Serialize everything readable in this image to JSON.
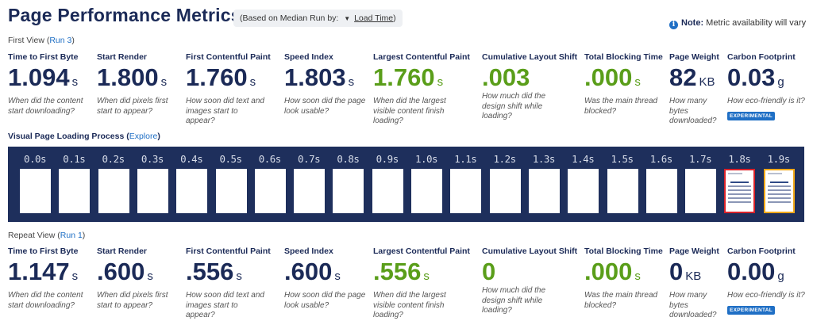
{
  "page": {
    "title": "Page Performance Metrics",
    "median_prefix": "(Based on Median Run by:",
    "median_value": "Load Time",
    "median_suffix": ")",
    "note_label": "Note:",
    "note_text": "Metric availability will vary"
  },
  "first_view": {
    "label": "First View (",
    "run": "Run 3",
    "close": ")",
    "metrics": [
      {
        "label": "Time to First Byte",
        "value": "1.094",
        "unit": "s",
        "desc": "When did the content start downloading?",
        "color": "#1b2a57"
      },
      {
        "label": "Start Render",
        "value": "1.800",
        "unit": "s",
        "desc": "When did pixels first start to appear?",
        "color": "#1b2a57"
      },
      {
        "label": "First Contentful Paint",
        "value": "1.760",
        "unit": "s",
        "desc": "How soon did text and images start to appear?",
        "color": "#1b2a57"
      },
      {
        "label": "Speed Index",
        "value": "1.803",
        "unit": "s",
        "desc": "How soon did the page look usable?",
        "color": "#1b2a57"
      },
      {
        "label": "Largest Contentful Paint",
        "value": "1.760",
        "unit": "s",
        "desc": "When did the largest visible content finish loading?",
        "color": "#5a9e1a"
      },
      {
        "label": "Cumulative Layout Shift",
        "value": ".003",
        "unit": "",
        "desc": "How much did the design shift while loading?",
        "color": "#5a9e1a"
      },
      {
        "label": "Total Blocking Time",
        "value": ".000",
        "unit": "s",
        "desc": "Was the main thread blocked?",
        "color": "#5a9e1a"
      },
      {
        "label": "Page Weight",
        "value": "82",
        "unit": "KB",
        "desc": "How many bytes downloaded?",
        "color": "#1b2a57"
      },
      {
        "label": "Carbon Footprint",
        "value": "0.03",
        "unit": "g",
        "desc": "How eco-friendly is it?",
        "color": "#1b2a57",
        "badge": "EXPERIMENTAL"
      }
    ]
  },
  "visual_loading": {
    "label": "Visual Page Loading Process",
    "explore": "Explore",
    "frames": [
      {
        "time": "0.0s",
        "state": "blank"
      },
      {
        "time": "0.1s",
        "state": "blank"
      },
      {
        "time": "0.2s",
        "state": "blank"
      },
      {
        "time": "0.3s",
        "state": "blank"
      },
      {
        "time": "0.4s",
        "state": "blank"
      },
      {
        "time": "0.5s",
        "state": "blank"
      },
      {
        "time": "0.6s",
        "state": "blank"
      },
      {
        "time": "0.7s",
        "state": "blank"
      },
      {
        "time": "0.8s",
        "state": "blank"
      },
      {
        "time": "0.9s",
        "state": "blank"
      },
      {
        "time": "1.0s",
        "state": "blank"
      },
      {
        "time": "1.1s",
        "state": "blank"
      },
      {
        "time": "1.2s",
        "state": "blank"
      },
      {
        "time": "1.3s",
        "state": "blank"
      },
      {
        "time": "1.4s",
        "state": "blank"
      },
      {
        "time": "1.5s",
        "state": "blank"
      },
      {
        "time": "1.6s",
        "state": "blank"
      },
      {
        "time": "1.7s",
        "state": "blank"
      },
      {
        "time": "1.8s",
        "state": "content",
        "border": "#d9222a"
      },
      {
        "time": "1.9s",
        "state": "content",
        "border": "#f0a81a"
      }
    ]
  },
  "repeat_view": {
    "label": "Repeat View (",
    "run": "Run 1",
    "close": ")",
    "metrics": [
      {
        "label": "Time to First Byte",
        "value": "1.147",
        "unit": "s",
        "desc": "When did the content start downloading?",
        "color": "#1b2a57"
      },
      {
        "label": "Start Render",
        "value": ".600",
        "unit": "s",
        "desc": "When did pixels first start to appear?",
        "color": "#1b2a57"
      },
      {
        "label": "First Contentful Paint",
        "value": ".556",
        "unit": "s",
        "desc": "How soon did text and images start to appear?",
        "color": "#1b2a57"
      },
      {
        "label": "Speed Index",
        "value": ".600",
        "unit": "s",
        "desc": "How soon did the page look usable?",
        "color": "#1b2a57"
      },
      {
        "label": "Largest Contentful Paint",
        "value": ".556",
        "unit": "s",
        "desc": "When did the largest visible content finish loading?",
        "color": "#5a9e1a"
      },
      {
        "label": "Cumulative Layout Shift",
        "value": "0",
        "unit": "",
        "desc": "How much did the design shift while loading?",
        "color": "#5a9e1a"
      },
      {
        "label": "Total Blocking Time",
        "value": ".000",
        "unit": "s",
        "desc": "Was the main thread blocked?",
        "color": "#5a9e1a"
      },
      {
        "label": "Page Weight",
        "value": "0",
        "unit": "KB",
        "desc": "How many bytes downloaded?",
        "color": "#1b2a57"
      },
      {
        "label": "Carbon Footprint",
        "value": "0.00",
        "unit": "g",
        "desc": "How eco-friendly is it?",
        "color": "#1b2a57",
        "badge": "EXPERIMENTAL"
      }
    ]
  }
}
